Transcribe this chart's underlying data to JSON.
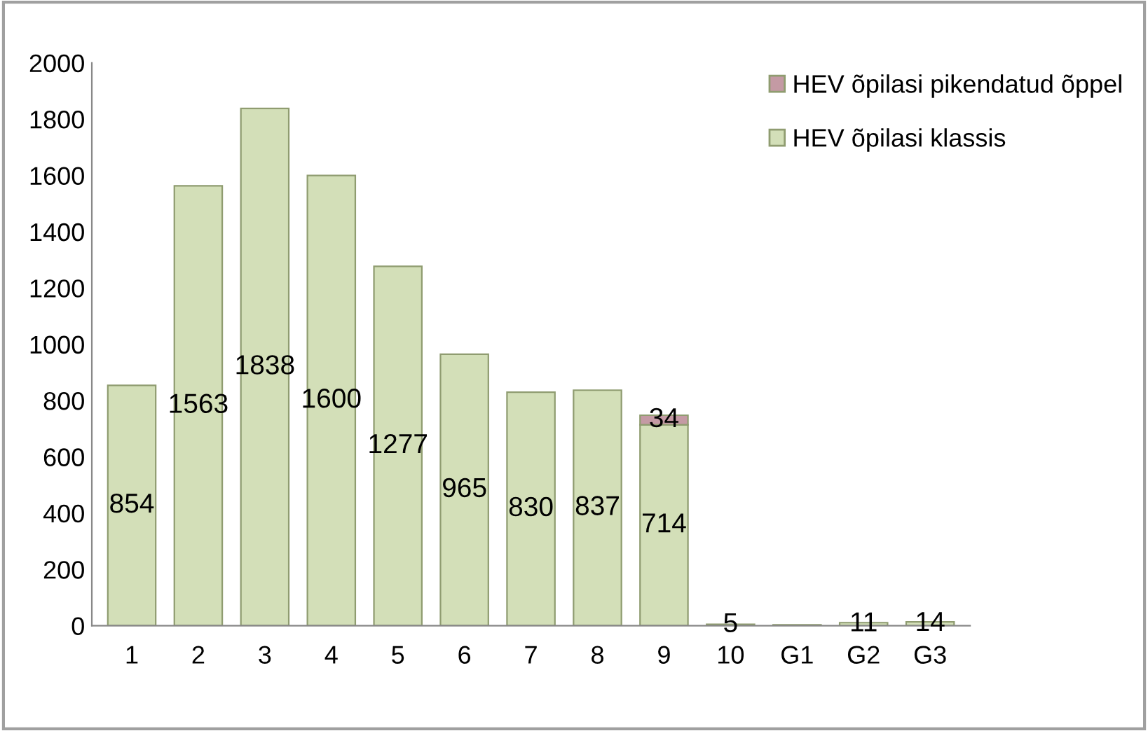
{
  "chart_data": {
    "type": "bar",
    "stacked": true,
    "categories": [
      "1",
      "2",
      "3",
      "4",
      "5",
      "6",
      "7",
      "8",
      "9",
      "10",
      "G1",
      "G2",
      "G3"
    ],
    "series": [
      {
        "name": "HEV õpilasi klassis",
        "color": "#d3dfb8",
        "values": [
          854,
          1563,
          1838,
          1600,
          1277,
          965,
          830,
          837,
          714,
          null,
          3,
          11,
          14
        ],
        "value_labels": [
          "854",
          "1563",
          "1838",
          "1600",
          "1277",
          "965",
          "830",
          "837",
          "714",
          null,
          null,
          "11",
          "14"
        ]
      },
      {
        "name": "HEV õpilasi pikendatud õppel",
        "color": "#c49aa4",
        "values": [
          null,
          null,
          null,
          null,
          null,
          null,
          null,
          null,
          34,
          5,
          null,
          null,
          null
        ],
        "value_labels": [
          null,
          null,
          null,
          null,
          null,
          null,
          null,
          null,
          "34",
          "5",
          null,
          null,
          null
        ]
      }
    ],
    "ylim": [
      0,
      2000
    ],
    "yticks": [
      0,
      200,
      400,
      600,
      800,
      1000,
      1200,
      1400,
      1600,
      1800,
      2000
    ],
    "grid": false,
    "legend": "top right"
  }
}
